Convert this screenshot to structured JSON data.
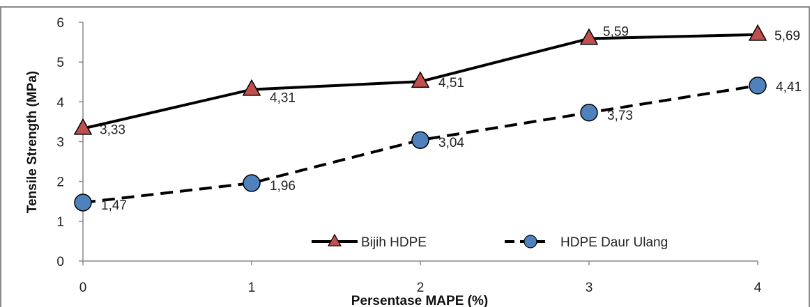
{
  "chart_data": {
    "type": "line",
    "x": [
      0,
      1,
      2,
      3,
      4
    ],
    "xlabel": "Persentase MAPE (%)",
    "ylabel": "Tensile Strength (MPa)",
    "xlim": [
      0,
      4
    ],
    "ylim": [
      0,
      6
    ],
    "x_ticks": [
      "0",
      "1",
      "2",
      "3",
      "4"
    ],
    "y_ticks": [
      "0",
      "1",
      "2",
      "3",
      "4",
      "5",
      "6"
    ],
    "grid": false,
    "legend_position": "bottom-right",
    "series": [
      {
        "name": "Bijih HDPE",
        "values": [
          3.33,
          4.31,
          4.51,
          5.59,
          5.69
        ],
        "labels": [
          "3,33",
          "4,31",
          "4,51",
          "5,59",
          "5,69"
        ],
        "line_style": "solid",
        "marker": "triangle",
        "line_color": "#000000",
        "marker_color": "#c0504d"
      },
      {
        "name": "HDPE Daur Ulang",
        "values": [
          1.47,
          1.96,
          3.04,
          3.73,
          4.41
        ],
        "labels": [
          "1,47",
          "1,96",
          "3,04",
          "3,73",
          "4,41"
        ],
        "line_style": "dashed",
        "marker": "circle",
        "line_color": "#000000",
        "marker_color": "#4f81bd"
      }
    ]
  }
}
